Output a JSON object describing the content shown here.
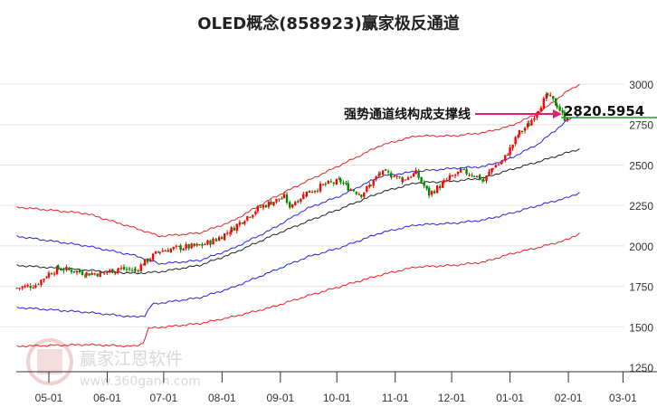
{
  "chart_data": {
    "type": "candlestick-channel",
    "title": "OLED概念(858923)赢家极反通道",
    "ylim": [
      1250,
      3000
    ],
    "yticks": [
      3000,
      2750,
      2500,
      2250,
      2000,
      1750,
      1500,
      1250
    ],
    "xticks": [
      {
        "label": "05-01",
        "day": 0
      },
      {
        "label": "06-01",
        "day": 31
      },
      {
        "label": "07-01",
        "day": 61
      },
      {
        "label": "08-01",
        "day": 92
      },
      {
        "label": "09-01",
        "day": 123
      },
      {
        "label": "10-01",
        "day": 153
      },
      {
        "label": "11-01",
        "day": 184
      },
      {
        "label": "12-01",
        "day": 214
      },
      {
        "label": "01-01",
        "day": 245
      },
      {
        "label": "02-01",
        "day": 276
      },
      {
        "label": "03-01",
        "day": 305
      }
    ],
    "x_unit": "days since 05-01",
    "price_close": [
      [
        -17,
        1740
      ],
      [
        -7,
        1760
      ],
      [
        0,
        1830
      ],
      [
        5,
        1860
      ],
      [
        12,
        1850
      ],
      [
        20,
        1830
      ],
      [
        28,
        1830
      ],
      [
        37,
        1860
      ],
      [
        46,
        1850
      ],
      [
        51,
        1900
      ],
      [
        59,
        1970
      ],
      [
        70,
        1990
      ],
      [
        80,
        2000
      ],
      [
        89,
        2040
      ],
      [
        97,
        2100
      ],
      [
        104,
        2170
      ],
      [
        111,
        2230
      ],
      [
        118,
        2270
      ],
      [
        125,
        2300
      ],
      [
        128,
        2250
      ],
      [
        137,
        2330
      ],
      [
        147,
        2380
      ],
      [
        155,
        2400
      ],
      [
        159,
        2360
      ],
      [
        166,
        2320
      ],
      [
        171,
        2380
      ],
      [
        176,
        2450
      ],
      [
        182,
        2440
      ],
      [
        188,
        2410
      ],
      [
        195,
        2450
      ],
      [
        202,
        2320
      ],
      [
        210,
        2390
      ],
      [
        213,
        2420
      ],
      [
        219,
        2460
      ],
      [
        226,
        2440
      ],
      [
        231,
        2400
      ],
      [
        236,
        2490
      ],
      [
        241,
        2520
      ],
      [
        245,
        2600
      ],
      [
        250,
        2700
      ],
      [
        255,
        2750
      ],
      [
        260,
        2850
      ],
      [
        265,
        2930
      ],
      [
        270,
        2870
      ],
      [
        274,
        2790
      ],
      [
        276,
        2810
      ]
    ],
    "series": [
      {
        "name": "upper-red",
        "color": "#ee2222",
        "points": [
          [
            -17,
            2240
          ],
          [
            20,
            2200
          ],
          [
            46,
            2110
          ],
          [
            59,
            2060
          ],
          [
            80,
            2080
          ],
          [
            97,
            2150
          ],
          [
            118,
            2290
          ],
          [
            137,
            2400
          ],
          [
            155,
            2500
          ],
          [
            176,
            2620
          ],
          [
            195,
            2680
          ],
          [
            215,
            2680
          ],
          [
            231,
            2700
          ],
          [
            245,
            2740
          ],
          [
            260,
            2820
          ],
          [
            276,
            2960
          ],
          [
            282,
            3000
          ]
        ]
      },
      {
        "name": "upper-blue",
        "color": "#2222ee",
        "points": [
          [
            -17,
            2060
          ],
          [
            20,
            2000
          ],
          [
            46,
            1940
          ],
          [
            59,
            1890
          ],
          [
            80,
            1910
          ],
          [
            97,
            1980
          ],
          [
            118,
            2100
          ],
          [
            137,
            2230
          ],
          [
            155,
            2310
          ],
          [
            176,
            2430
          ],
          [
            195,
            2460
          ],
          [
            215,
            2480
          ],
          [
            231,
            2490
          ],
          [
            245,
            2540
          ],
          [
            260,
            2630
          ],
          [
            276,
            2780
          ],
          [
            282,
            2810
          ]
        ]
      },
      {
        "name": "middle-black",
        "color": "#222222",
        "points": [
          [
            -17,
            1880
          ],
          [
            20,
            1850
          ],
          [
            46,
            1830
          ],
          [
            59,
            1840
          ],
          [
            80,
            1880
          ],
          [
            97,
            1950
          ],
          [
            118,
            2060
          ],
          [
            137,
            2150
          ],
          [
            155,
            2230
          ],
          [
            176,
            2330
          ],
          [
            195,
            2390
          ],
          [
            215,
            2400
          ],
          [
            231,
            2420
          ],
          [
            245,
            2470
          ],
          [
            260,
            2520
          ],
          [
            282,
            2600
          ]
        ]
      },
      {
        "name": "lower-blue",
        "color": "#2222ee",
        "points": [
          [
            -17,
            1620
          ],
          [
            20,
            1590
          ],
          [
            46,
            1560
          ],
          [
            51,
            1570
          ],
          [
            55,
            1640
          ],
          [
            80,
            1680
          ],
          [
            97,
            1740
          ],
          [
            118,
            1840
          ],
          [
            137,
            1930
          ],
          [
            155,
            1990
          ],
          [
            176,
            2080
          ],
          [
            195,
            2130
          ],
          [
            215,
            2140
          ],
          [
            231,
            2160
          ],
          [
            245,
            2200
          ],
          [
            260,
            2250
          ],
          [
            276,
            2300
          ],
          [
            282,
            2330
          ]
        ]
      },
      {
        "name": "lower-red",
        "color": "#ee2222",
        "points": [
          [
            -17,
            1380
          ],
          [
            20,
            1390
          ],
          [
            46,
            1380
          ],
          [
            50,
            1400
          ],
          [
            53,
            1490
          ],
          [
            80,
            1520
          ],
          [
            97,
            1560
          ],
          [
            118,
            1620
          ],
          [
            137,
            1690
          ],
          [
            155,
            1750
          ],
          [
            176,
            1820
          ],
          [
            195,
            1870
          ],
          [
            215,
            1880
          ],
          [
            231,
            1900
          ],
          [
            245,
            1950
          ],
          [
            260,
            1990
          ],
          [
            276,
            2040
          ],
          [
            282,
            2080
          ]
        ]
      }
    ],
    "annotation": {
      "text": "强势通道线构成支撑线",
      "value": "2820.5954",
      "arrow_color": "#e0206a",
      "level_color": "#2a9a2a"
    },
    "up_color": "#ff0000",
    "down_color": "#008800"
  },
  "watermark": {
    "brand": "赢家江恩软件",
    "url": "www.360gann.com",
    "seal": "江赢恩家"
  }
}
